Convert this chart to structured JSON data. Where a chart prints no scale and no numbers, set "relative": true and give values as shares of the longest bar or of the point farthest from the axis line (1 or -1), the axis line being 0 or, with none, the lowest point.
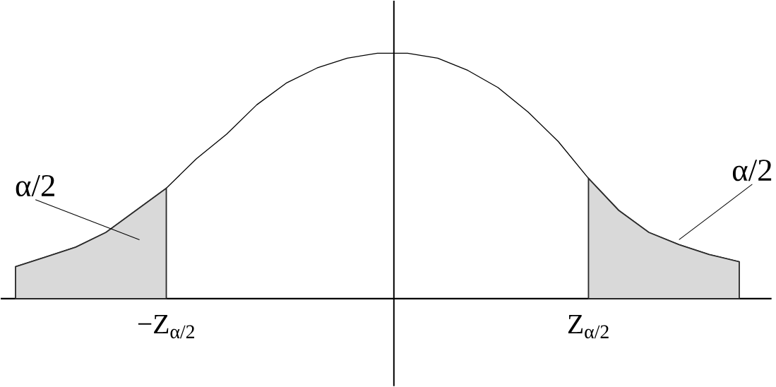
{
  "chart_data": {
    "type": "line",
    "relative": true,
    "marker": "none",
    "categories": [
      null,
      null,
      null,
      null,
      null,
      "−Z$_{α/2}$",
      null,
      null,
      null,
      null,
      null,
      null,
      null,
      null,
      null,
      null,
      null,
      null,
      null,
      "Z$_{α/2}$",
      null,
      null,
      null,
      null,
      null
    ],
    "series": [
      {
        "color": "#000000",
        "values": [
          0.13,
          0.17,
          0.21,
          0.27,
          0.36,
          0.45,
          0.57,
          0.67,
          0.79,
          0.88,
          0.94,
          0.98,
          1.0,
          1.0,
          0.98,
          0.93,
          0.86,
          0.76,
          0.64,
          0.49,
          0.36,
          0.27,
          0.22,
          0.18,
          0.15
        ]
      },
      {
        "type": "area",
        "color": "#d9d9d9",
        "values": [
          0.13,
          0.17,
          0.21,
          0.27,
          0.36,
          0.45,
          null,
          null,
          null,
          null,
          null,
          null,
          null,
          null,
          null,
          null,
          null,
          null,
          null,
          null,
          null,
          null,
          null,
          null,
          null
        ]
      },
      {
        "type": "area",
        "color": "#d9d9d9",
        "values": [
          null,
          null,
          null,
          null,
          null,
          null,
          null,
          null,
          null,
          null,
          null,
          null,
          null,
          null,
          null,
          null,
          null,
          null,
          null,
          0.49,
          0.36,
          0.27,
          0.22,
          0.18,
          0.15
        ]
      }
    ],
    "annotations": [
      "α/2",
      "α/2"
    ]
  }
}
